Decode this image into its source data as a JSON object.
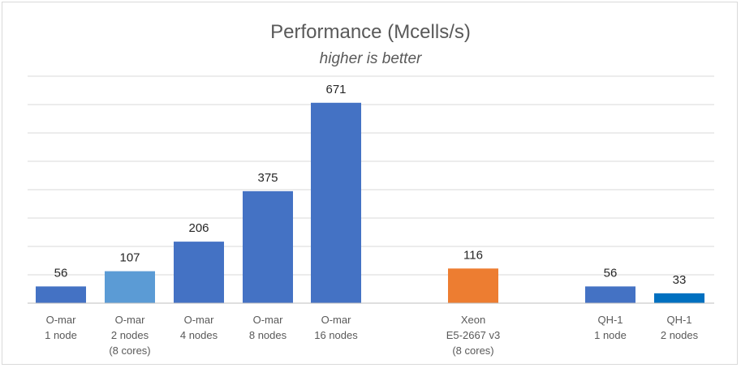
{
  "chart_data": {
    "type": "bar",
    "title": "Performance (Mcells/s)",
    "subtitle": "higher is better",
    "xlabel": "",
    "ylabel": "",
    "ylim": [
      0,
      760
    ],
    "grid": true,
    "legend": "none",
    "categories": [
      [
        "O-mar",
        "1 node"
      ],
      [
        "O-mar",
        "2 nodes",
        "(8 cores)"
      ],
      [
        "O-mar",
        "4 nodes"
      ],
      [
        "O-mar",
        "8 nodes"
      ],
      [
        "O-mar",
        "16 nodes"
      ],
      [
        "Xeon",
        "E5-2667 v3",
        "(8 cores)"
      ],
      [
        "QH-1",
        "1 node"
      ],
      [
        "QH-1",
        "2 nodes"
      ]
    ],
    "values": [
      56,
      107,
      206,
      375,
      671,
      116,
      56,
      33
    ],
    "colors": [
      "#4472c4",
      "#5b9bd5",
      "#4472c4",
      "#4472c4",
      "#4472c4",
      "#ed7d31",
      "#4472c4",
      "#0070c0"
    ]
  }
}
